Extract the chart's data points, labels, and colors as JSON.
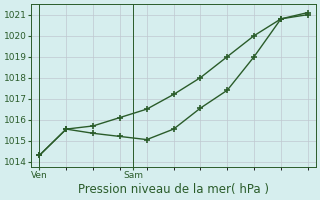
{
  "line1_x": [
    0,
    1,
    2,
    3,
    4,
    5,
    6,
    7,
    8,
    9,
    10
  ],
  "line1_y": [
    1014.3,
    1015.55,
    1015.7,
    1016.1,
    1016.5,
    1017.2,
    1018.0,
    1019.0,
    1020.0,
    1020.8,
    1021.1
  ],
  "line2_x": [
    0,
    1,
    2,
    3,
    4,
    5,
    6,
    7,
    8,
    9,
    10
  ],
  "line2_y": [
    1014.3,
    1015.55,
    1015.35,
    1015.2,
    1015.05,
    1015.55,
    1016.55,
    1017.4,
    1019.0,
    1020.8,
    1021.0
  ],
  "line_color": "#2a5c2a",
  "bg_color": "#d6eeee",
  "grid_color_major": "#c0c8d0",
  "grid_color_minor": "#d8dde2",
  "axis_color": "#2a5c2a",
  "xlabel": "Pression niveau de la mer( hPa )",
  "ylim": [
    1013.75,
    1021.5
  ],
  "yticks": [
    1014,
    1015,
    1016,
    1017,
    1018,
    1019,
    1020,
    1021
  ],
  "ven_x": 0.0,
  "sam_x": 3.5,
  "ven_label": "Ven",
  "sam_label": "Sam",
  "tick_fontsize": 6.5,
  "xlabel_fontsize": 8.5,
  "marker": "+",
  "markersize": 5,
  "linewidth": 1.0,
  "xlim": [
    -0.3,
    10.3
  ]
}
